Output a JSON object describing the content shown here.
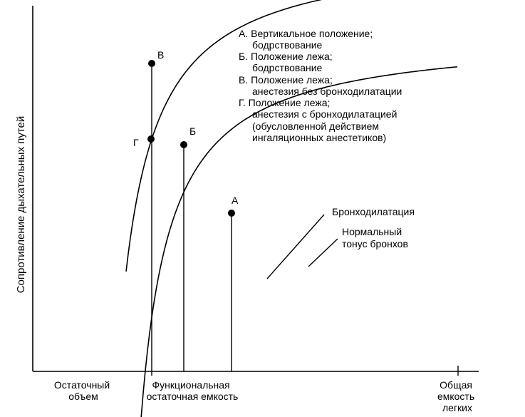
{
  "chart_data": {
    "type": "line",
    "ylabel": "Сопротивление дыхательных путей",
    "x_ticks": [
      {
        "id": "residual-volume",
        "lines": [
          "Остаточный",
          "объем"
        ]
      },
      {
        "id": "frc",
        "lines": [
          "Функциональная",
          "остаточная емкость"
        ]
      },
      {
        "id": "tlc",
        "lines": [
          "Общая",
          "емкость",
          "легких"
        ]
      }
    ],
    "series": [
      {
        "id": "bronchodilation",
        "label_lines": [
          "Бронходилатация"
        ]
      },
      {
        "id": "normal-tone",
        "label_lines": [
          "Нормальный",
          "тонус бронхов"
        ]
      }
    ],
    "points": [
      {
        "id": "v",
        "label": "В",
        "curve": "normal-tone"
      },
      {
        "id": "g",
        "label": "Г",
        "curve": "bronchodilation"
      },
      {
        "id": "b",
        "label": "Б",
        "curve": "normal-tone"
      },
      {
        "id": "a",
        "label": "А",
        "curve": "normal-tone"
      }
    ],
    "legend": {
      "lines": [
        "А. Вертикальное положение;",
        "бодрствование",
        "Б. Положение лежа;",
        "бодрствование",
        "В. Положение лежа;",
        "анестезия без бронходилатации",
        "Г. Положение лежа;",
        "анестезия с бронходилатацией",
        "(обусловленной действием",
        "ингаляционных анестетиков)"
      ]
    },
    "grid": false
  }
}
